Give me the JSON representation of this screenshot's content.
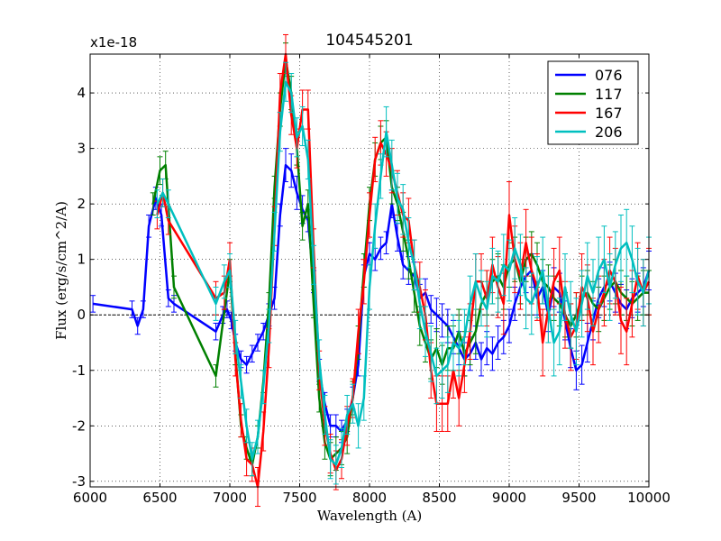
{
  "chart_data": {
    "type": "line",
    "title": "104545201",
    "xlabel": "Wavelength (A)",
    "ylabel": "Flux (erg/s/cm^2/A)",
    "y_multiplier_label": "x1e-18",
    "xlim": [
      6000,
      10000
    ],
    "ylim": [
      -3.1,
      4.7
    ],
    "xticks": [
      6000,
      6500,
      7000,
      7500,
      8000,
      8500,
      9000,
      9500,
      10000
    ],
    "yticks": [
      -3,
      -2,
      -1,
      0,
      1,
      2,
      3,
      4
    ],
    "grid": true,
    "zero_line": true,
    "legend_position": "top-right",
    "series": [
      {
        "name": "076",
        "color": "#0000ff",
        "x": [
          6020,
          6300,
          6340,
          6380,
          6420,
          6470,
          6510,
          6560,
          6600,
          6900,
          6950,
          6980,
          7010,
          7040,
          7080,
          7120,
          7160,
          7200,
          7240,
          7280,
          7320,
          7360,
          7400,
          7440,
          7480,
          7520,
          7560,
          7600,
          7640,
          7680,
          7720,
          7760,
          7800,
          7840,
          7880,
          7920,
          7960,
          8000,
          8040,
          8080,
          8120,
          8160,
          8200,
          8240,
          8280,
          8320,
          8360,
          8400,
          8440,
          8480,
          8520,
          8560,
          8600,
          8640,
          8680,
          8720,
          8760,
          8800,
          8840,
          8880,
          8920,
          8960,
          9000,
          9040,
          9080,
          9120,
          9160,
          9200,
          9240,
          9280,
          9320,
          9360,
          9400,
          9440,
          9480,
          9520,
          9560,
          9600,
          9640,
          9680,
          9720,
          9760,
          9800,
          9840,
          9880,
          9920,
          9960,
          10000
        ],
        "y": [
          0.2,
          0.1,
          -0.2,
          0.1,
          1.6,
          2.1,
          1.8,
          0.3,
          0.2,
          -0.3,
          0.0,
          0.1,
          -0.1,
          -0.5,
          -0.8,
          -0.9,
          -0.7,
          -0.5,
          -0.3,
          0.0,
          0.3,
          1.8,
          2.7,
          2.6,
          2.2,
          1.9,
          1.7,
          0.6,
          -1.0,
          -1.6,
          -2.0,
          -2.0,
          -2.1,
          -1.9,
          -1.5,
          -0.9,
          0.7,
          1.1,
          1.0,
          1.2,
          1.3,
          2.0,
          1.4,
          0.9,
          0.8,
          0.7,
          0.3,
          0.4,
          0.1,
          0.0,
          -0.1,
          -0.2,
          -0.4,
          -0.6,
          -0.8,
          -0.7,
          -0.5,
          -0.8,
          -0.6,
          -0.7,
          -0.5,
          -0.4,
          -0.2,
          0.2,
          0.5,
          0.7,
          0.8,
          0.3,
          0.5,
          0.0,
          0.5,
          0.4,
          -0.1,
          -0.6,
          -1.0,
          -0.9,
          -0.5,
          -0.1,
          0.3,
          0.5,
          0.6,
          0.4,
          0.2,
          0.1,
          0.3,
          0.4,
          0.5,
          0.8
        ],
        "err": [
          0.15,
          0.15,
          0.15,
          0.15,
          0.2,
          0.2,
          0.2,
          0.15,
          0.15,
          0.15,
          0.15,
          0.15,
          0.15,
          0.15,
          0.15,
          0.15,
          0.15,
          0.15,
          0.15,
          0.2,
          0.2,
          0.2,
          0.3,
          0.3,
          0.3,
          0.25,
          0.2,
          0.2,
          0.2,
          0.2,
          0.2,
          0.2,
          0.2,
          0.2,
          0.2,
          0.2,
          0.2,
          0.2,
          0.2,
          0.2,
          0.2,
          0.25,
          0.25,
          0.25,
          0.25,
          0.25,
          0.25,
          0.25,
          0.25,
          0.3,
          0.3,
          0.3,
          0.3,
          0.3,
          0.3,
          0.3,
          0.3,
          0.3,
          0.3,
          0.3,
          0.3,
          0.3,
          0.3,
          0.3,
          0.3,
          0.3,
          0.3,
          0.3,
          0.3,
          0.3,
          0.35,
          0.35,
          0.35,
          0.35,
          0.35,
          0.35,
          0.35,
          0.35,
          0.35,
          0.35,
          0.35,
          0.35,
          0.35,
          0.35,
          0.35,
          0.35,
          0.35,
          0.35
        ]
      },
      {
        "name": "117",
        "color": "#008000",
        "x": [
          6450,
          6500,
          6540,
          6600,
          6900,
          7000,
          7040,
          7080,
          7120,
          7160,
          7200,
          7240,
          7280,
          7320,
          7360,
          7400,
          7440,
          7480,
          7520,
          7560,
          7600,
          7640,
          7680,
          7720,
          7760,
          7800,
          7840,
          7880,
          7920,
          7960,
          8000,
          8040,
          8080,
          8120,
          8160,
          8200,
          8240,
          8280,
          8320,
          8360,
          8400,
          8440,
          8480,
          8520,
          8560,
          8600,
          8640,
          8680,
          8720,
          8760,
          8800,
          8840,
          8880,
          8920,
          8960,
          9000,
          9040,
          9080,
          9120,
          9160,
          9200,
          9240,
          9280,
          9320,
          9360,
          9400,
          9440,
          9480,
          9520,
          9560,
          9600,
          9640,
          9680,
          9720,
          9760,
          9800,
          9840,
          9880,
          9920,
          9960,
          10000
        ],
        "y": [
          2.0,
          2.6,
          2.7,
          0.5,
          -1.1,
          0.8,
          -0.7,
          -2.0,
          -2.4,
          -2.7,
          -2.2,
          -1.2,
          0.2,
          2.3,
          3.7,
          4.6,
          4.0,
          3.0,
          1.6,
          2.0,
          0.2,
          -1.5,
          -2.3,
          -2.6,
          -2.5,
          -2.4,
          -2.2,
          -1.5,
          -0.5,
          0.8,
          2.0,
          2.8,
          3.1,
          3.2,
          2.3,
          2.0,
          1.5,
          1.0,
          0.4,
          -0.2,
          -0.5,
          -0.8,
          -0.6,
          -0.9,
          -0.6,
          -0.6,
          -0.3,
          -0.7,
          -0.5,
          -0.3,
          0.2,
          0.4,
          0.6,
          0.7,
          0.5,
          0.9,
          1.0,
          0.6,
          1.0,
          1.1,
          0.9,
          0.6,
          0.5,
          0.3,
          0.2,
          0.0,
          -0.2,
          0.0,
          0.3,
          0.4,
          0.2,
          0.1,
          0.3,
          0.5,
          0.6,
          0.4,
          0.3,
          0.2,
          0.3,
          0.4,
          0.4
        ],
        "err": [
          0.2,
          0.25,
          0.25,
          0.2,
          0.2,
          0.2,
          0.2,
          0.2,
          0.2,
          0.2,
          0.2,
          0.2,
          0.2,
          0.2,
          0.3,
          0.3,
          0.3,
          0.3,
          0.25,
          0.25,
          0.25,
          0.25,
          0.3,
          0.3,
          0.3,
          0.3,
          0.3,
          0.3,
          0.3,
          0.3,
          0.3,
          0.3,
          0.3,
          0.3,
          0.3,
          0.3,
          0.35,
          0.35,
          0.35,
          0.35,
          0.35,
          0.35,
          0.35,
          0.35,
          0.4,
          0.4,
          0.4,
          0.4,
          0.4,
          0.4,
          0.4,
          0.4,
          0.4,
          0.4,
          0.4,
          0.4,
          0.4,
          0.4,
          0.4,
          0.4,
          0.4,
          0.4,
          0.4,
          0.4,
          0.4,
          0.4,
          0.4,
          0.4,
          0.4,
          0.4,
          0.4,
          0.4,
          0.4,
          0.4,
          0.4,
          0.4,
          0.4,
          0.4,
          0.4,
          0.4,
          0.4
        ]
      },
      {
        "name": "167",
        "color": "#ff0000",
        "x": [
          6480,
          6520,
          6560,
          6900,
          6960,
          7000,
          7040,
          7080,
          7120,
          7160,
          7200,
          7240,
          7280,
          7320,
          7360,
          7400,
          7440,
          7480,
          7520,
          7560,
          7600,
          7640,
          7680,
          7720,
          7760,
          7800,
          7840,
          7880,
          7920,
          7960,
          8000,
          8040,
          8080,
          8120,
          8160,
          8200,
          8240,
          8280,
          8320,
          8360,
          8400,
          8440,
          8480,
          8520,
          8560,
          8600,
          8640,
          8680,
          8720,
          8760,
          8800,
          8840,
          8880,
          8920,
          8960,
          9000,
          9040,
          9080,
          9120,
          9160,
          9200,
          9240,
          9280,
          9320,
          9360,
          9400,
          9440,
          9480,
          9520,
          9560,
          9600,
          9640,
          9680,
          9720,
          9760,
          9800,
          9840,
          9880,
          9920,
          9960,
          10000
        ],
        "y": [
          1.8,
          2.2,
          1.7,
          0.3,
          0.4,
          1.0,
          -0.8,
          -1.9,
          -2.6,
          -2.7,
          -3.1,
          -2.1,
          -0.6,
          1.6,
          4.0,
          4.7,
          3.6,
          3.0,
          3.7,
          3.7,
          1.2,
          -1.0,
          -2.0,
          -2.5,
          -2.8,
          -2.6,
          -2.0,
          -1.5,
          -0.3,
          0.6,
          1.8,
          2.8,
          3.1,
          2.9,
          2.6,
          2.2,
          1.8,
          1.7,
          0.9,
          0.5,
          0.0,
          -1.0,
          -1.6,
          -1.6,
          -1.6,
          -1.0,
          -1.5,
          -0.9,
          -0.3,
          0.6,
          0.6,
          0.3,
          0.9,
          0.5,
          0.2,
          1.8,
          1.0,
          0.7,
          1.3,
          0.8,
          0.5,
          -0.5,
          0.1,
          0.6,
          0.8,
          0.0,
          -0.4,
          -0.2,
          0.5,
          0.3,
          -0.3,
          0.1,
          0.4,
          0.8,
          0.6,
          -0.1,
          -0.3,
          0.2,
          0.7,
          0.4,
          0.6
        ],
        "err": [
          0.25,
          0.25,
          0.25,
          0.3,
          0.3,
          0.3,
          0.3,
          0.3,
          0.3,
          0.3,
          0.35,
          0.35,
          0.35,
          0.35,
          0.35,
          0.35,
          0.35,
          0.35,
          0.35,
          0.35,
          0.35,
          0.35,
          0.35,
          0.35,
          0.35,
          0.35,
          0.35,
          0.35,
          0.4,
          0.4,
          0.4,
          0.4,
          0.4,
          0.4,
          0.4,
          0.4,
          0.4,
          0.4,
          0.45,
          0.45,
          0.45,
          0.5,
          0.5,
          0.5,
          0.5,
          0.5,
          0.5,
          0.5,
          0.5,
          0.5,
          0.5,
          0.5,
          0.5,
          0.55,
          0.55,
          0.6,
          0.6,
          0.6,
          0.6,
          0.6,
          0.6,
          0.6,
          0.6,
          0.6,
          0.6,
          0.6,
          0.6,
          0.6,
          0.6,
          0.6,
          0.6,
          0.6,
          0.6,
          0.6,
          0.6,
          0.6,
          0.6,
          0.6,
          0.6,
          0.6,
          0.6
        ]
      },
      {
        "name": "206",
        "color": "#00bfbf",
        "x": [
          6480,
          6520,
          6560,
          6900,
          6960,
          7000,
          7040,
          7080,
          7120,
          7160,
          7200,
          7240,
          7280,
          7320,
          7360,
          7400,
          7440,
          7480,
          7520,
          7560,
          7600,
          7640,
          7680,
          7720,
          7760,
          7800,
          7840,
          7880,
          7920,
          7960,
          8000,
          8040,
          8080,
          8120,
          8160,
          8200,
          8240,
          8280,
          8320,
          8360,
          8400,
          8440,
          8480,
          8520,
          8560,
          8600,
          8640,
          8680,
          8720,
          8760,
          8800,
          8840,
          8880,
          8920,
          8960,
          9000,
          9040,
          9080,
          9120,
          9160,
          9200,
          9240,
          9280,
          9320,
          9360,
          9400,
          9440,
          9480,
          9520,
          9560,
          9600,
          9640,
          9680,
          9720,
          9760,
          9800,
          9840,
          9880,
          9920,
          9960,
          10000
        ],
        "y": [
          2.0,
          2.2,
          2.0,
          0.2,
          0.6,
          0.8,
          -0.4,
          -1.2,
          -2.0,
          -2.6,
          -2.2,
          -1.3,
          -0.2,
          1.5,
          3.3,
          4.2,
          4.0,
          3.2,
          3.4,
          2.8,
          0.9,
          -0.8,
          -1.8,
          -2.6,
          -2.7,
          -2.4,
          -1.8,
          -1.6,
          -2.0,
          -1.5,
          0.5,
          1.6,
          2.5,
          3.3,
          2.7,
          2.1,
          1.9,
          1.3,
          0.9,
          0.2,
          -0.3,
          -0.7,
          -1.1,
          -1.0,
          -0.9,
          -0.5,
          -0.6,
          -0.4,
          0.2,
          0.6,
          0.3,
          0.1,
          0.7,
          0.6,
          0.9,
          0.8,
          1.2,
          0.9,
          0.3,
          0.2,
          0.5,
          0.8,
          0.1,
          -0.5,
          -0.3,
          0.5,
          0.0,
          -0.3,
          0.2,
          0.7,
          0.4,
          0.8,
          1.0,
          0.5,
          0.9,
          1.2,
          1.3,
          1.0,
          0.6,
          0.4,
          0.8
        ],
        "err": [
          0.25,
          0.25,
          0.25,
          0.3,
          0.3,
          0.3,
          0.3,
          0.3,
          0.3,
          0.3,
          0.3,
          0.3,
          0.3,
          0.35,
          0.35,
          0.35,
          0.35,
          0.35,
          0.35,
          0.35,
          0.35,
          0.35,
          0.35,
          0.35,
          0.35,
          0.35,
          0.35,
          0.35,
          0.4,
          0.4,
          0.4,
          0.4,
          0.4,
          0.45,
          0.45,
          0.45,
          0.45,
          0.45,
          0.45,
          0.45,
          0.45,
          0.5,
          0.5,
          0.5,
          0.5,
          0.5,
          0.5,
          0.5,
          0.5,
          0.5,
          0.5,
          0.5,
          0.5,
          0.55,
          0.55,
          0.55,
          0.55,
          0.55,
          0.55,
          0.55,
          0.55,
          0.6,
          0.6,
          0.6,
          0.6,
          0.6,
          0.6,
          0.6,
          0.6,
          0.6,
          0.6,
          0.6,
          0.6,
          0.6,
          0.6,
          0.6,
          0.6,
          0.6,
          0.6,
          0.6,
          0.6
        ]
      }
    ]
  }
}
